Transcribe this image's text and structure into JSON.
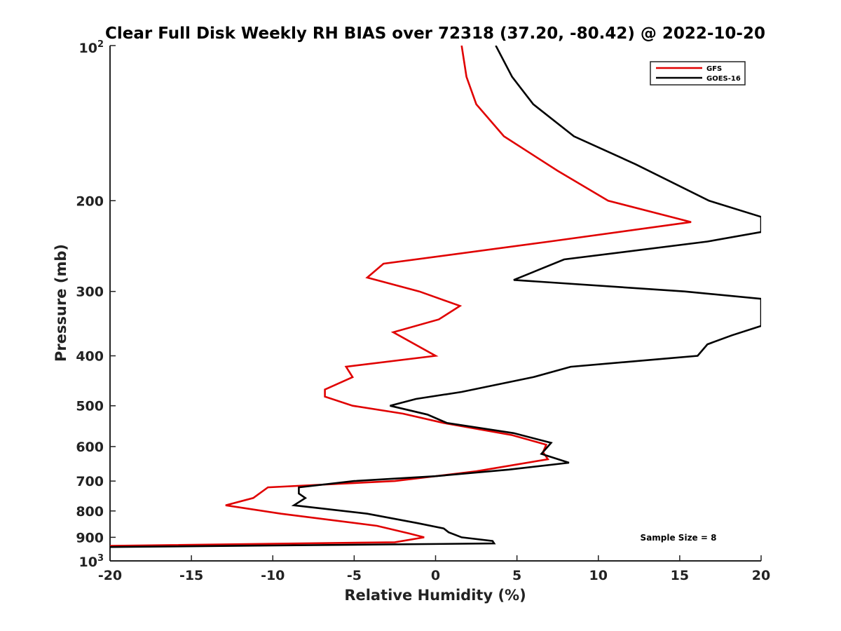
{
  "chart_data": {
    "type": "line",
    "title": "Clear Full Disk Weekly RH BIAS over 72318 (37.20, -80.42) @ 2022-10-20",
    "xlabel": "Relative Humidity (%)",
    "ylabel": "Pressure (mb)",
    "xlim": [
      -20,
      20
    ],
    "ylim": [
      100,
      1000
    ],
    "y_scale": "log",
    "y_reversed": true,
    "grid": false,
    "legend_position": "top-right",
    "x_ticks": [
      "-20",
      "-15",
      "-10",
      "-5",
      "0",
      "5",
      "10",
      "15",
      "20"
    ],
    "y_ticks": [
      {
        "value": 100,
        "base": "10",
        "exp": "2"
      },
      {
        "value": 200,
        "label": "200"
      },
      {
        "value": 300,
        "label": "300"
      },
      {
        "value": 400,
        "label": "400"
      },
      {
        "value": 500,
        "label": "500"
      },
      {
        "value": 600,
        "label": "600"
      },
      {
        "value": 700,
        "label": "700"
      },
      {
        "value": 800,
        "label": "800"
      },
      {
        "value": 900,
        "label": "900"
      },
      {
        "value": 1000,
        "base": "10",
        "exp": "3"
      }
    ],
    "series": [
      {
        "name": "GFS",
        "color": "#e00000",
        "points": [
          [
            1.6,
            100
          ],
          [
            1.9,
            115
          ],
          [
            2.5,
            130
          ],
          [
            4.2,
            150
          ],
          [
            7.5,
            175
          ],
          [
            10.6,
            200
          ],
          [
            15.7,
            220
          ],
          [
            7.0,
            240
          ],
          [
            -3.2,
            265
          ],
          [
            -4.2,
            282
          ],
          [
            -1.0,
            300
          ],
          [
            1.5,
            320
          ],
          [
            0.2,
            340
          ],
          [
            -2.6,
            360
          ],
          [
            0.0,
            400
          ],
          [
            -5.5,
            420
          ],
          [
            -5.1,
            440
          ],
          [
            -6.8,
            465
          ],
          [
            -6.8,
            480
          ],
          [
            -5.1,
            500
          ],
          [
            -2.0,
            518
          ],
          [
            0.5,
            540
          ],
          [
            4.7,
            570
          ],
          [
            6.8,
            595
          ],
          [
            6.6,
            615
          ],
          [
            6.9,
            635
          ],
          [
            2.5,
            670
          ],
          [
            -2.5,
            700
          ],
          [
            -10.3,
            720
          ],
          [
            -11.2,
            755
          ],
          [
            -12.9,
            780
          ],
          [
            -9.5,
            810
          ],
          [
            -3.6,
            855
          ],
          [
            -1.6,
            885
          ],
          [
            -0.7,
            900
          ],
          [
            -2.5,
            920
          ],
          [
            -20.0,
            935
          ]
        ]
      },
      {
        "name": "GOES-16",
        "color": "#000000",
        "points": [
          [
            3.7,
            100
          ],
          [
            4.7,
            115
          ],
          [
            6.0,
            130
          ],
          [
            8.5,
            150
          ],
          [
            12.3,
            170
          ],
          [
            16.8,
            200
          ],
          [
            20.0,
            215
          ],
          [
            20.0,
            230
          ],
          [
            16.7,
            240
          ],
          [
            7.9,
            260
          ],
          [
            4.8,
            285
          ],
          [
            15.3,
            300
          ],
          [
            20.0,
            310
          ],
          [
            20.0,
            350
          ],
          [
            18.2,
            365
          ],
          [
            16.7,
            380
          ],
          [
            16.1,
            400
          ],
          [
            8.3,
            420
          ],
          [
            6.0,
            440
          ],
          [
            1.6,
            470
          ],
          [
            -1.2,
            485
          ],
          [
            -2.8,
            500
          ],
          [
            -0.5,
            520
          ],
          [
            0.7,
            540
          ],
          [
            4.8,
            565
          ],
          [
            7.1,
            590
          ],
          [
            6.5,
            620
          ],
          [
            8.2,
            645
          ],
          [
            4.5,
            665
          ],
          [
            0.0,
            685
          ],
          [
            -5.0,
            700
          ],
          [
            -8.4,
            720
          ],
          [
            -8.4,
            740
          ],
          [
            -8.0,
            755
          ],
          [
            -8.7,
            780
          ],
          [
            -4.2,
            810
          ],
          [
            -1.1,
            845
          ],
          [
            0.5,
            865
          ],
          [
            0.8,
            880
          ],
          [
            1.6,
            900
          ],
          [
            3.5,
            915
          ],
          [
            3.6,
            925
          ],
          [
            -20.0,
            940
          ]
        ]
      }
    ],
    "annotation": "Sample Size = 8"
  }
}
